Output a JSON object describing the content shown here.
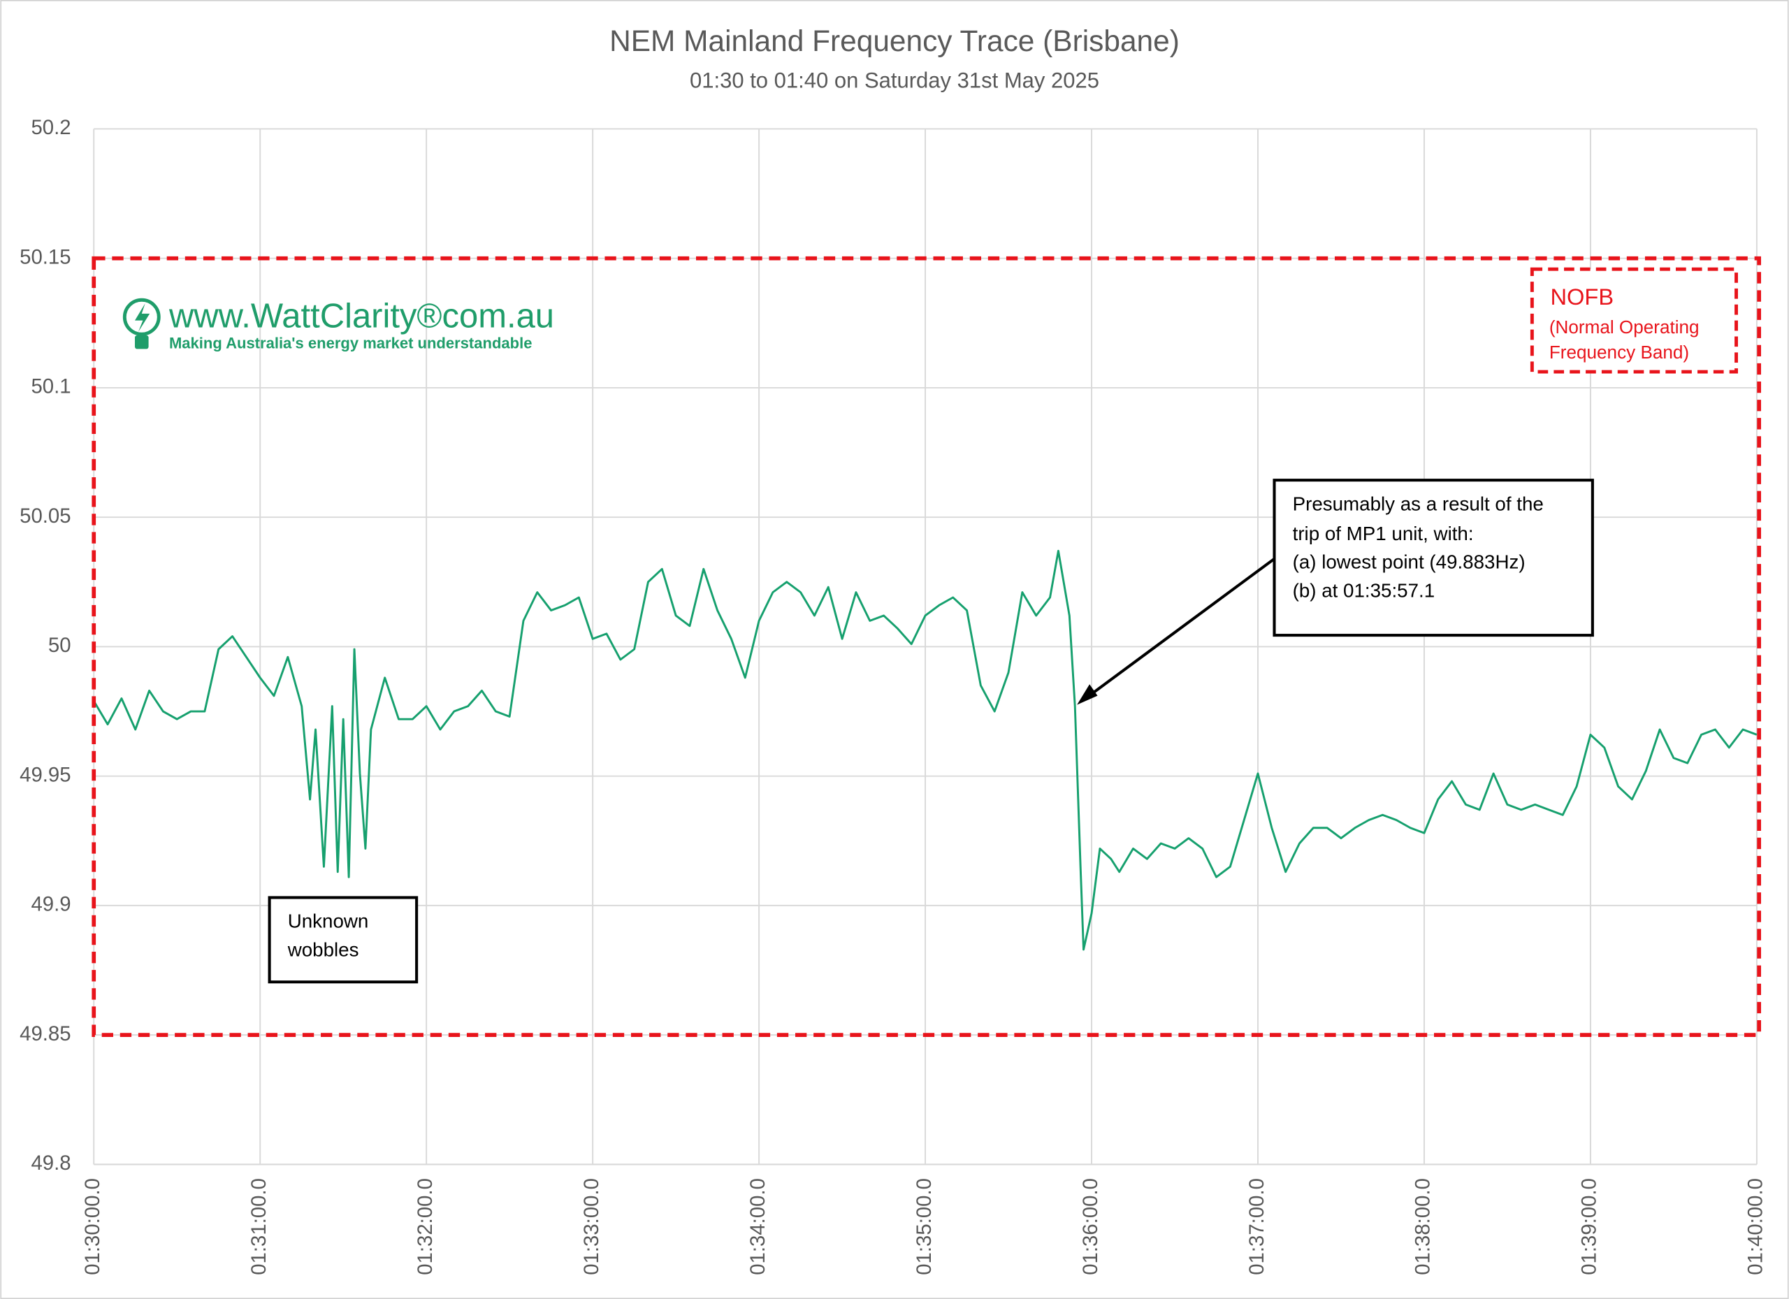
{
  "chart_data": {
    "type": "line",
    "title": "NEM Mainland Frequency Trace (Brisbane)",
    "subtitle": "01:30 to 01:40 on Saturday 31st May 2025",
    "color": "#16a06e",
    "x": [
      "01:30:00.0",
      "01:30:05.0",
      "01:30:10.0",
      "01:30:15.0",
      "01:30:20.0",
      "01:30:25.0",
      "01:30:30.0",
      "01:30:35.0",
      "01:30:40.0",
      "01:30:45.0",
      "01:30:50.0",
      "01:30:55.0",
      "01:31:00.0",
      "01:31:05.0",
      "01:31:10.0",
      "01:31:15.0",
      "01:31:18.0",
      "01:31:20.0",
      "01:31:23.0",
      "01:31:26.0",
      "01:31:28.0",
      "01:31:30.0",
      "01:31:32.0",
      "01:31:34.0",
      "01:31:36.0",
      "01:31:38.0",
      "01:31:40.0",
      "01:31:45.0",
      "01:31:50.0",
      "01:31:55.0",
      "01:32:00.0",
      "01:32:05.0",
      "01:32:10.0",
      "01:32:15.0",
      "01:32:20.0",
      "01:32:25.0",
      "01:32:30.0",
      "01:32:35.0",
      "01:32:40.0",
      "01:32:45.0",
      "01:32:50.0",
      "01:32:55.0",
      "01:33:00.0",
      "01:33:05.0",
      "01:33:10.0",
      "01:33:15.0",
      "01:33:20.0",
      "01:33:25.0",
      "01:33:30.0",
      "01:33:35.0",
      "01:33:40.0",
      "01:33:45.0",
      "01:33:50.0",
      "01:33:55.0",
      "01:34:00.0",
      "01:34:05.0",
      "01:34:10.0",
      "01:34:15.0",
      "01:34:20.0",
      "01:34:25.0",
      "01:34:30.0",
      "01:34:35.0",
      "01:34:40.0",
      "01:34:45.0",
      "01:34:50.0",
      "01:34:55.0",
      "01:35:00.0",
      "01:35:05.0",
      "01:35:10.0",
      "01:35:15.0",
      "01:35:20.0",
      "01:35:25.0",
      "01:35:30.0",
      "01:35:35.0",
      "01:35:40.0",
      "01:35:45.0",
      "01:35:48.0",
      "01:35:52.0",
      "01:35:54.0",
      "01:35:56.0",
      "01:35:57.1",
      "01:36:00.0",
      "01:36:03.0",
      "01:36:07.0",
      "01:36:10.0",
      "01:36:15.0",
      "01:36:20.0",
      "01:36:25.0",
      "01:36:30.0",
      "01:36:35.0",
      "01:36:40.0",
      "01:36:45.0",
      "01:36:50.0",
      "01:36:55.0",
      "01:37:00.0",
      "01:37:05.0",
      "01:37:10.0",
      "01:37:15.0",
      "01:37:20.0",
      "01:37:25.0",
      "01:37:30.0",
      "01:37:35.0",
      "01:37:40.0",
      "01:37:45.0",
      "01:37:50.0",
      "01:37:55.0",
      "01:38:00.0",
      "01:38:05.0",
      "01:38:10.0",
      "01:38:15.0",
      "01:38:20.0",
      "01:38:25.0",
      "01:38:30.0",
      "01:38:35.0",
      "01:38:40.0",
      "01:38:45.0",
      "01:38:50.0",
      "01:38:55.0",
      "01:39:00.0",
      "01:39:05.0",
      "01:39:10.0",
      "01:39:15.0",
      "01:39:20.0",
      "01:39:25.0",
      "01:39:30.0",
      "01:39:35.0",
      "01:39:40.0",
      "01:39:45.0",
      "01:39:50.0",
      "01:39:55.0",
      "01:40:00.0"
    ],
    "values": [
      49.979,
      49.97,
      49.98,
      49.968,
      49.983,
      49.975,
      49.972,
      49.975,
      49.975,
      49.999,
      50.004,
      49.996,
      49.988,
      49.981,
      49.996,
      49.977,
      49.941,
      49.968,
      49.915,
      49.977,
      49.913,
      49.972,
      49.911,
      49.999,
      49.951,
      49.922,
      49.968,
      49.988,
      49.972,
      49.972,
      49.977,
      49.968,
      49.975,
      49.977,
      49.983,
      49.975,
      49.973,
      50.01,
      50.021,
      50.014,
      50.016,
      50.019,
      50.003,
      50.005,
      49.995,
      49.999,
      50.025,
      50.03,
      50.012,
      50.008,
      50.03,
      50.014,
      50.003,
      49.988,
      50.01,
      50.021,
      50.025,
      50.021,
      50.012,
      50.023,
      50.003,
      50.021,
      50.01,
      50.012,
      50.007,
      50.001,
      50.012,
      50.016,
      50.019,
      50.014,
      49.985,
      49.975,
      49.99,
      50.021,
      50.012,
      50.019,
      50.037,
      50.012,
      49.977,
      49.915,
      49.883,
      49.897,
      49.922,
      49.918,
      49.913,
      49.922,
      49.918,
      49.924,
      49.922,
      49.926,
      49.922,
      49.911,
      49.915,
      49.933,
      49.951,
      49.93,
      49.913,
      49.924,
      49.93,
      49.93,
      49.926,
      49.93,
      49.933,
      49.935,
      49.933,
      49.93,
      49.928,
      49.941,
      49.948,
      49.939,
      49.937,
      49.951,
      49.939,
      49.937,
      49.939,
      49.937,
      49.935,
      49.946,
      49.966,
      49.961,
      49.946,
      49.941,
      49.952,
      49.968,
      49.957,
      49.955,
      49.966,
      49.968,
      49.961,
      49.968,
      49.966
    ],
    "xlim": [
      "01:30:00.0",
      "01:40:00.0"
    ],
    "xticks": [
      "01:30:00.0",
      "01:31:00.0",
      "01:32:00.0",
      "01:33:00.0",
      "01:34:00.0",
      "01:35:00.0",
      "01:36:00.0",
      "01:37:00.0",
      "01:38:00.0",
      "01:39:00.0",
      "01:40:00.0"
    ],
    "ylim": [
      49.8,
      50.2
    ],
    "yticks": [
      49.8,
      49.85,
      49.9,
      49.95,
      50,
      50.05,
      50.1,
      50.15,
      50.2
    ],
    "grid": true,
    "band": {
      "range": [
        49.85,
        50.15
      ],
      "color": "#e8141b",
      "label": "NOFB",
      "description": [
        "(Normal Operating",
        "Frequency Band)"
      ]
    },
    "annotations": [
      {
        "lines": [
          "Presumably as a result of the",
          "trip of MP1 unit, with:",
          "(a)  lowest point (49.883Hz)",
          "(b)  at 01:35:57.1"
        ]
      },
      {
        "lines": [
          "Unknown",
          "wobbles"
        ]
      }
    ],
    "logo": {
      "title": "www.WattClarity®com.au",
      "tagline": "Making Australia's energy market understandable"
    }
  }
}
